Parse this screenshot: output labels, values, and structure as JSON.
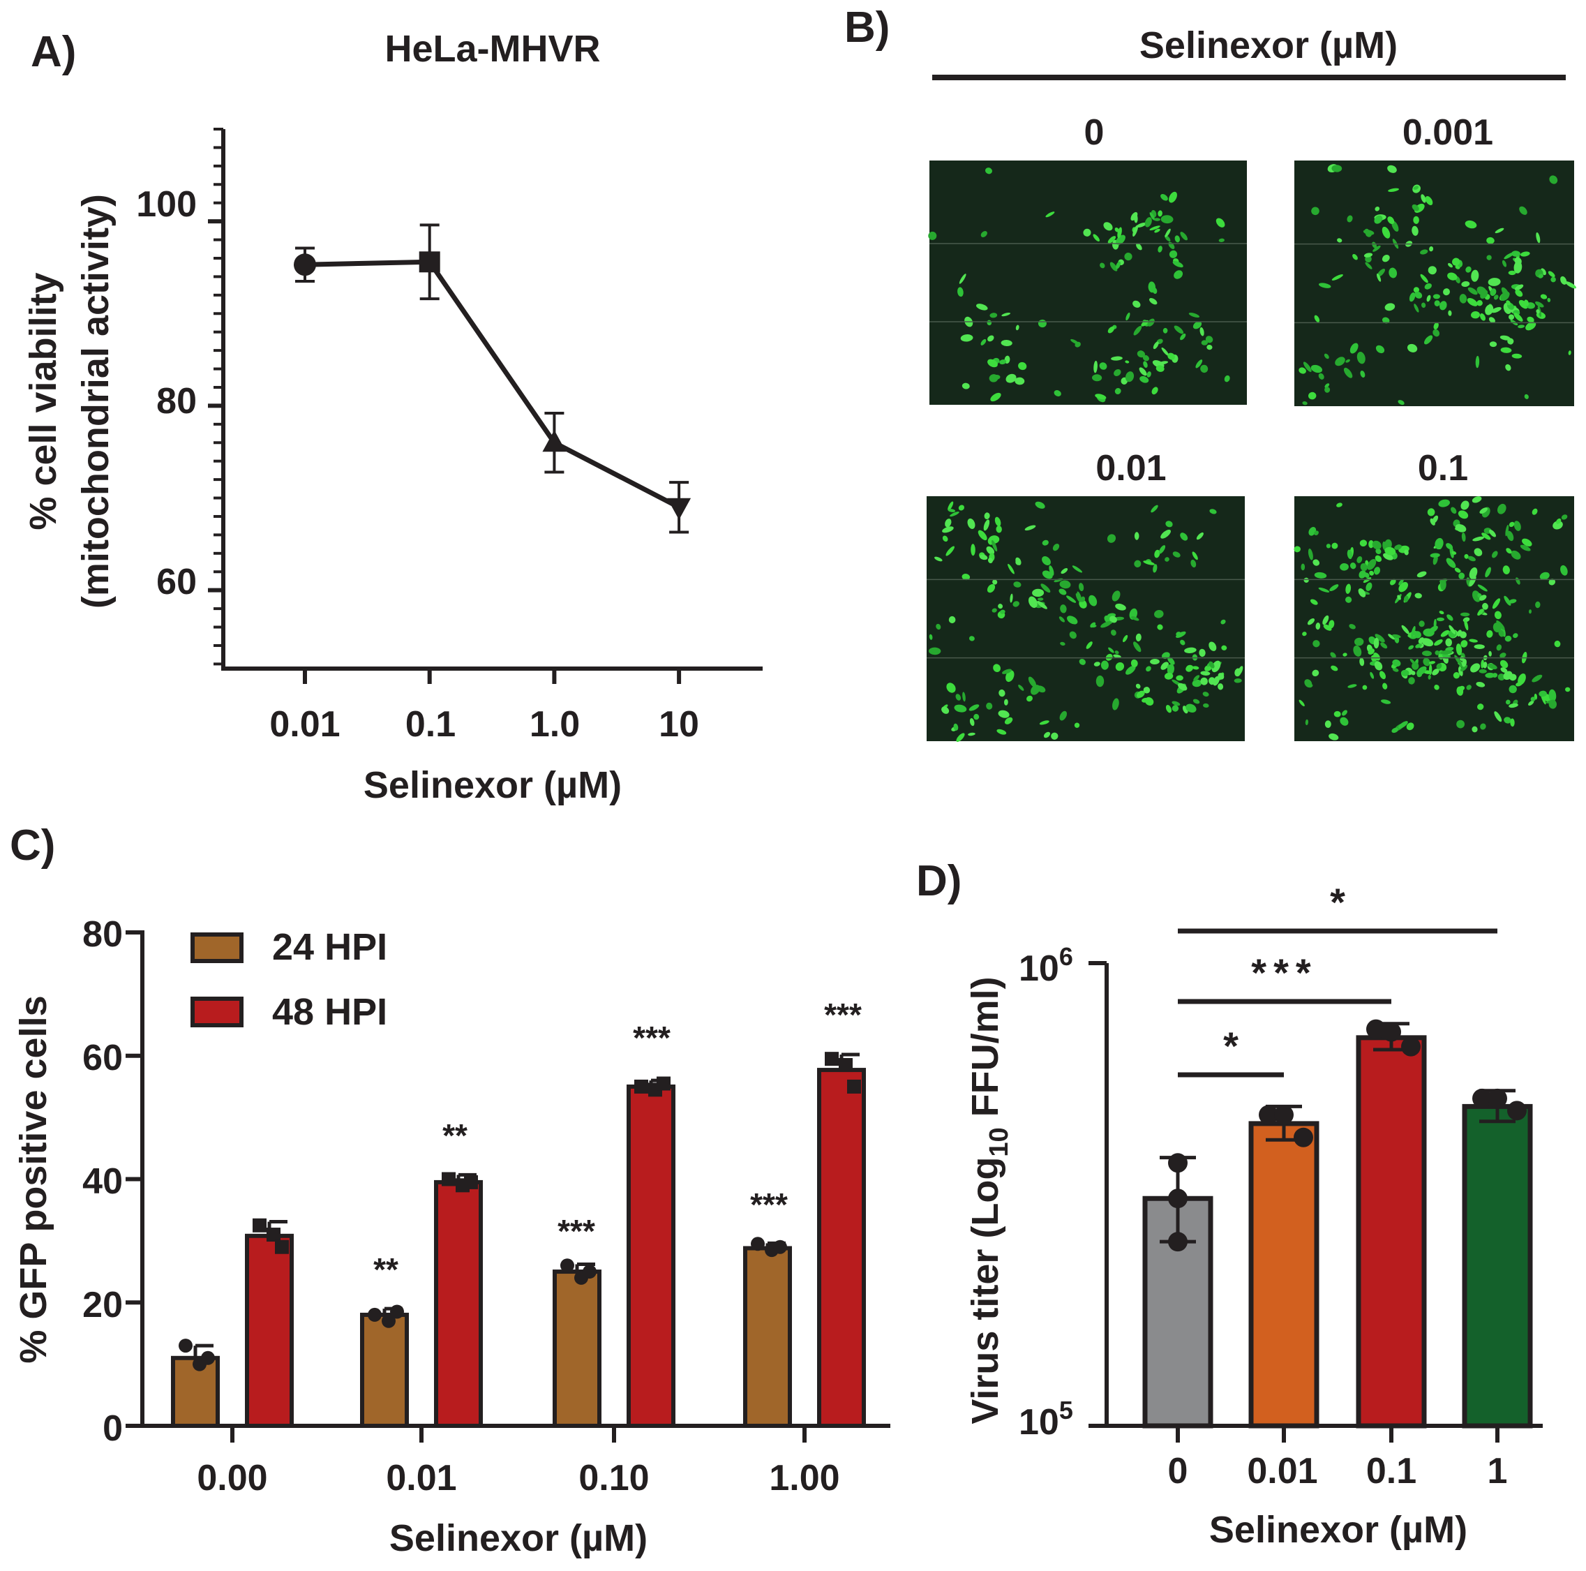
{
  "panels": [
    {
      "label": "A)"
    },
    {
      "label": "B)"
    },
    {
      "label": "C)"
    },
    {
      "label": "D)"
    }
  ],
  "chart_data": [
    {
      "panel": "A",
      "type": "line",
      "title": "HeLa-MHVR",
      "xlabel": "Selinexor (µM)",
      "ylabel_line1": "% cell viability",
      "ylabel_line2": "(mitochondrial activity)",
      "x_tick_labels": [
        "0.01",
        "0.1",
        "1.0",
        "10"
      ],
      "y_tick_labels": [
        "100",
        "80",
        "60"
      ],
      "y_ticks": [
        100,
        80,
        60
      ],
      "ylim": [
        51.5,
        110
      ],
      "x": [
        0.01,
        0.1,
        1.0,
        10
      ],
      "values": [
        95.3,
        95.6,
        76.0,
        69.0
      ],
      "errors": [
        1.8,
        4.0,
        3.2,
        2.7
      ],
      "markers": [
        "circle",
        "square",
        "triangle-up",
        "triangle-down"
      ]
    },
    {
      "panel": "B",
      "type": "image-grid",
      "header": "Selinexor (µM)",
      "images": [
        {
          "label": "0",
          "density": 0.3
        },
        {
          "label": "0.001",
          "density": 0.4
        },
        {
          "label": "0.01",
          "density": 0.52
        },
        {
          "label": "0.1",
          "density": 0.75
        }
      ]
    },
    {
      "panel": "C",
      "type": "bar",
      "ylabel": "% GFP positive cells",
      "xlabel": "Selinexor (µM)",
      "categories": [
        "0.00",
        "0.01",
        "0.10",
        "1.00"
      ],
      "ylim": [
        0,
        80
      ],
      "y_ticks": [
        0,
        20,
        40,
        60,
        80
      ],
      "y_tick_labels": [
        "0",
        "20",
        "40",
        "60",
        "80"
      ],
      "series": [
        {
          "name": "24 HPI",
          "color": "#a0662a",
          "values": [
            11.0,
            18.0,
            25.0,
            28.8
          ],
          "errors": [
            2.0,
            1.0,
            1.2,
            0.8
          ],
          "points": [
            [
              13,
              10,
              11
            ],
            [
              18,
              17,
              18.5
            ],
            [
              26,
              24,
              25
            ],
            [
              29.5,
              28.5,
              29
            ]
          ],
          "markers": "circle",
          "annotations": [
            "",
            "**",
            "***",
            "***"
          ]
        },
        {
          "name": "48 HPI",
          "color": "#b81c1e",
          "values": [
            30.8,
            39.5,
            55.0,
            57.7
          ],
          "errors": [
            2.3,
            1.2,
            1.0,
            2.5
          ],
          "points": [
            [
              32.5,
              31,
              29
            ],
            [
              40,
              39,
              39.5
            ],
            [
              55,
              54.5,
              55.5
            ],
            [
              59.5,
              58.5,
              55
            ]
          ],
          "markers": "square",
          "annotations": [
            "",
            "**",
            "***",
            "***"
          ]
        }
      ]
    },
    {
      "panel": "D",
      "type": "bar",
      "ylabel": "Virus titer (Log",
      "ylabel_sub": "10",
      "ylabel_end": " FFU/ml)",
      "xlabel": "Selinexor (µM)",
      "scale": "log",
      "ylim": [
        100000,
        1000000
      ],
      "y_ticks": [
        1000000,
        100000
      ],
      "y_tick_labels": [
        {
          "base": "10",
          "exp": "6"
        },
        {
          "base": "10",
          "exp": "5"
        }
      ],
      "categories": [
        "0",
        "0.01",
        "0.1",
        "1"
      ],
      "colors": [
        "#8a8b8d",
        "#d2601f",
        "#b81c1e",
        "#14612b"
      ],
      "values": [
        310000,
        450000,
        690000,
        490000
      ],
      "errors_low": [
        250000,
        415000,
        650000,
        455000
      ],
      "errors_high": [
        380000,
        490000,
        740000,
        530000
      ],
      "points": [
        [
          370000,
          310000,
          250000
        ],
        [
          470000,
          470000,
          420000
        ],
        [
          720000,
          710000,
          660000
        ],
        [
          510000,
          510000,
          480000
        ]
      ],
      "significance": [
        {
          "from": "0",
          "to": "0.01",
          "label": "*"
        },
        {
          "from": "0",
          "to": "0.1",
          "label": "***"
        },
        {
          "from": "0",
          "to": "1",
          "label": "*"
        }
      ]
    }
  ]
}
